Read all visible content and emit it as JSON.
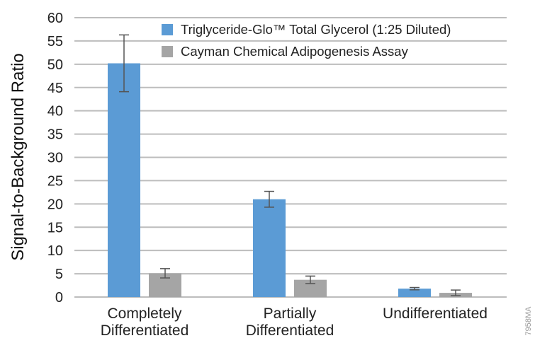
{
  "chart_data": {
    "type": "bar",
    "title": "",
    "xlabel": "",
    "ylabel": "Signal-to-Background Ratio",
    "ylim": [
      0,
      60
    ],
    "yticks": [
      0,
      5,
      10,
      15,
      20,
      25,
      30,
      35,
      40,
      45,
      50,
      55,
      60
    ],
    "grid": true,
    "legend_position": "top-right",
    "categories": [
      [
        "Completely",
        "Differentiated"
      ],
      [
        "Partially",
        "Differentiated"
      ],
      [
        "Undifferentiated"
      ]
    ],
    "series": [
      {
        "name": "Triglyceride-Glo™ Total Glycerol (1:25 Diluted)",
        "color": "#5b9bd5",
        "values": [
          50.2,
          21.0,
          1.8
        ],
        "error": [
          6.1,
          1.7,
          0.25
        ]
      },
      {
        "name": "Cayman Chemical Adipogenesis Assay",
        "color": "#a5a5a5",
        "values": [
          5.1,
          3.7,
          0.9
        ],
        "error": [
          1.0,
          0.8,
          0.6
        ]
      }
    ],
    "watermark": "7958MA"
  }
}
